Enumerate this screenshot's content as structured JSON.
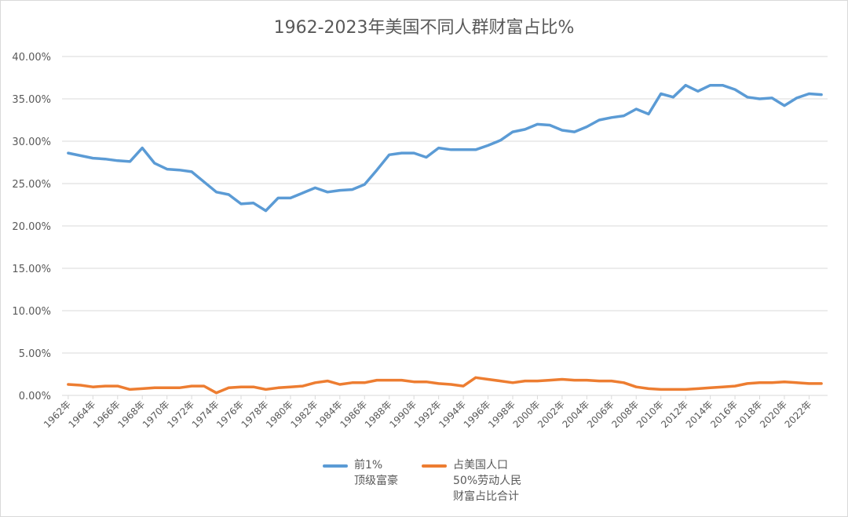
{
  "chart_data": {
    "type": "line",
    "title": "1962-2023年美国不同人群财富占比%",
    "xlabel": "",
    "ylabel": "",
    "ylim": [
      0,
      0.4
    ],
    "yticks": [
      "0.00%",
      "5.00%",
      "10.00%",
      "15.00%",
      "20.00%",
      "25.00%",
      "30.00%",
      "35.00%",
      "40.00%"
    ],
    "x": [
      1962,
      1963,
      1964,
      1965,
      1966,
      1967,
      1968,
      1969,
      1970,
      1971,
      1972,
      1973,
      1974,
      1975,
      1976,
      1977,
      1978,
      1979,
      1980,
      1981,
      1982,
      1983,
      1984,
      1985,
      1986,
      1987,
      1988,
      1989,
      1990,
      1991,
      1992,
      1993,
      1994,
      1995,
      1996,
      1997,
      1998,
      1999,
      2000,
      2001,
      2002,
      2003,
      2004,
      2005,
      2006,
      2007,
      2008,
      2009,
      2010,
      2011,
      2012,
      2013,
      2014,
      2015,
      2016,
      2017,
      2018,
      2019,
      2020,
      2021,
      2022,
      2023
    ],
    "xtick_labels": [
      "1962年",
      "1964年",
      "1966年",
      "1968年",
      "1970年",
      "1972年",
      "1974年",
      "1976年",
      "1978年",
      "1980年",
      "1982年",
      "1984年",
      "1986年",
      "1988年",
      "1990年",
      "1992年",
      "1994年",
      "1996年",
      "1998年",
      "2000年",
      "2002年",
      "2004年",
      "2006年",
      "2008年",
      "2010年",
      "2012年",
      "2014年",
      "2016年",
      "2018年",
      "2020年",
      "2022年"
    ],
    "grid": true,
    "legend_position": "bottom",
    "series": [
      {
        "name_lines": [
          "前1%",
          "顶级富豪"
        ],
        "color": "#5b9bd5",
        "values": [
          0.286,
          0.283,
          0.28,
          0.279,
          0.277,
          0.276,
          0.292,
          0.274,
          0.267,
          0.266,
          0.264,
          0.252,
          0.24,
          0.237,
          0.226,
          0.227,
          0.218,
          0.233,
          0.233,
          0.239,
          0.245,
          0.24,
          0.242,
          0.243,
          0.249,
          0.266,
          0.284,
          0.286,
          0.286,
          0.281,
          0.292,
          0.29,
          0.29,
          0.29,
          0.295,
          0.301,
          0.311,
          0.314,
          0.32,
          0.319,
          0.313,
          0.311,
          0.317,
          0.325,
          0.328,
          0.33,
          0.338,
          0.332,
          0.356,
          0.352,
          0.366,
          0.359,
          0.366,
          0.366,
          0.361,
          0.352,
          0.35,
          0.351,
          0.342,
          0.351,
          0.356,
          0.355
        ]
      },
      {
        "name_lines": [
          "占美国人口",
          "50%劳动人民",
          "财富占比合计"
        ],
        "color": "#ed7d31",
        "values": [
          0.013,
          0.012,
          0.01,
          0.011,
          0.011,
          0.007,
          0.008,
          0.009,
          0.009,
          0.009,
          0.011,
          0.011,
          0.003,
          0.009,
          0.01,
          0.01,
          0.007,
          0.009,
          0.01,
          0.011,
          0.015,
          0.017,
          0.013,
          0.015,
          0.015,
          0.018,
          0.018,
          0.018,
          0.016,
          0.016,
          0.014,
          0.013,
          0.011,
          0.021,
          0.019,
          0.017,
          0.015,
          0.017,
          0.017,
          0.018,
          0.019,
          0.018,
          0.018,
          0.017,
          0.017,
          0.015,
          0.01,
          0.008,
          0.007,
          0.007,
          0.007,
          0.008,
          0.009,
          0.01,
          0.011,
          0.014,
          0.015,
          0.015,
          0.016,
          0.015,
          0.014,
          0.014
        ]
      }
    ]
  }
}
